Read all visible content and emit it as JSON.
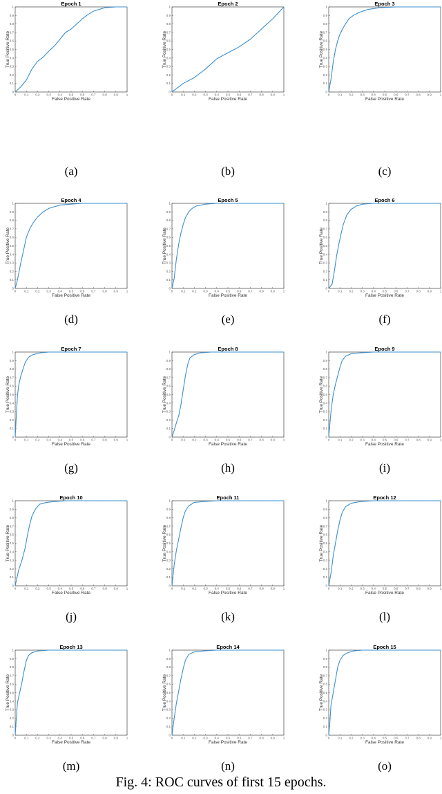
{
  "caption": "Fig. 4: ROC curves of first 15 epochs.",
  "line_color": "#3a8fd0",
  "chart_data": [
    {
      "type": "line",
      "title": "Epoch 1",
      "sublabel": "(a)",
      "xlabel": "False Positive Rate",
      "ylabel": "True Positive Rate",
      "xlim": [
        0,
        1
      ],
      "ylim": [
        0,
        1
      ],
      "x": [
        0,
        0.05,
        0.1,
        0.15,
        0.2,
        0.25,
        0.3,
        0.35,
        0.4,
        0.45,
        0.5,
        0.55,
        0.6,
        0.65,
        0.7,
        0.75,
        0.8,
        0.9,
        1
      ],
      "y": [
        0,
        0.06,
        0.14,
        0.27,
        0.36,
        0.41,
        0.48,
        0.54,
        0.62,
        0.7,
        0.74,
        0.8,
        0.86,
        0.91,
        0.95,
        0.97,
        0.99,
        1,
        1
      ]
    },
    {
      "type": "line",
      "title": "Epoch 2",
      "sublabel": "(b)",
      "xlabel": "False Positive Rate",
      "ylabel": "True Positive Rate",
      "xlim": [
        0,
        1
      ],
      "ylim": [
        0,
        1
      ],
      "x": [
        0,
        0.05,
        0.1,
        0.2,
        0.3,
        0.4,
        0.5,
        0.6,
        0.7,
        0.8,
        0.9,
        1
      ],
      "y": [
        0,
        0.05,
        0.1,
        0.17,
        0.27,
        0.39,
        0.46,
        0.53,
        0.62,
        0.74,
        0.86,
        1
      ]
    },
    {
      "type": "line",
      "title": "Epoch 3",
      "sublabel": "(c)",
      "xlabel": "False Positive Rate",
      "ylabel": "True Positive Rate",
      "xlim": [
        0,
        1
      ],
      "ylim": [
        0,
        1
      ],
      "x": [
        0,
        0.02,
        0.04,
        0.06,
        0.08,
        0.1,
        0.14,
        0.18,
        0.22,
        0.28,
        0.35,
        0.45,
        0.6,
        1
      ],
      "y": [
        0,
        0.15,
        0.35,
        0.5,
        0.6,
        0.68,
        0.78,
        0.86,
        0.9,
        0.94,
        0.97,
        0.99,
        1,
        1
      ]
    },
    {
      "type": "line",
      "title": "Epoch 4",
      "sublabel": "(d)",
      "xlabel": "False Positive Rate",
      "ylabel": "True Positive Rate",
      "xlim": [
        0,
        1
      ],
      "ylim": [
        0,
        1
      ],
      "x": [
        0,
        0.02,
        0.05,
        0.08,
        0.1,
        0.13,
        0.16,
        0.2,
        0.25,
        0.3,
        0.4,
        0.5,
        0.6,
        1
      ],
      "y": [
        0,
        0.1,
        0.3,
        0.48,
        0.6,
        0.7,
        0.77,
        0.84,
        0.9,
        0.94,
        0.98,
        0.99,
        1,
        1
      ]
    },
    {
      "type": "line",
      "title": "Epoch 5",
      "sublabel": "(e)",
      "xlabel": "False Positive Rate",
      "ylabel": "True Positive Rate",
      "xlim": [
        0,
        1
      ],
      "ylim": [
        0,
        1
      ],
      "x": [
        0,
        0.02,
        0.04,
        0.06,
        0.08,
        0.1,
        0.12,
        0.15,
        0.18,
        0.22,
        0.3,
        0.4,
        0.5,
        1
      ],
      "y": [
        0,
        0.12,
        0.35,
        0.52,
        0.65,
        0.75,
        0.83,
        0.9,
        0.94,
        0.97,
        0.99,
        1,
        1,
        1
      ]
    },
    {
      "type": "line",
      "title": "Epoch 6",
      "sublabel": "(f)",
      "xlabel": "False Positive Rate",
      "ylabel": "True Positive Rate",
      "xlim": [
        0,
        1
      ],
      "ylim": [
        0,
        1
      ],
      "x": [
        0,
        0.03,
        0.05,
        0.07,
        0.09,
        0.11,
        0.13,
        0.16,
        0.2,
        0.25,
        0.3,
        0.4,
        1
      ],
      "y": [
        0,
        0.05,
        0.2,
        0.38,
        0.52,
        0.64,
        0.75,
        0.86,
        0.93,
        0.97,
        0.99,
        1,
        1
      ]
    },
    {
      "type": "line",
      "title": "Epoch 7",
      "sublabel": "(g)",
      "xlabel": "False Positive Rate",
      "ylabel": "True Positive Rate",
      "xlim": [
        0,
        1
      ],
      "ylim": [
        0,
        1
      ],
      "x": [
        0,
        0.01,
        0.02,
        0.03,
        0.05,
        0.07,
        0.09,
        0.12,
        0.16,
        0.22,
        0.3,
        0.4,
        1
      ],
      "y": [
        0,
        0.25,
        0.48,
        0.6,
        0.72,
        0.8,
        0.88,
        0.94,
        0.97,
        0.99,
        1,
        1,
        1
      ]
    },
    {
      "type": "line",
      "title": "Epoch 8",
      "sublabel": "(h)",
      "xlabel": "False Positive Rate",
      "ylabel": "True Positive Rate",
      "xlim": [
        0,
        1
      ],
      "ylim": [
        0,
        1
      ],
      "x": [
        0,
        0.02,
        0.04,
        0.06,
        0.08,
        0.1,
        0.12,
        0.14,
        0.16,
        0.2,
        0.25,
        0.35,
        0.5,
        1
      ],
      "y": [
        0,
        0.08,
        0.17,
        0.25,
        0.38,
        0.55,
        0.72,
        0.85,
        0.93,
        0.97,
        0.99,
        1,
        1,
        1
      ]
    },
    {
      "type": "line",
      "title": "Epoch 9",
      "sublabel": "(i)",
      "xlabel": "False Positive Rate",
      "ylabel": "True Positive Rate",
      "xlim": [
        0,
        1
      ],
      "ylim": [
        0,
        1
      ],
      "x": [
        0,
        0.02,
        0.04,
        0.06,
        0.08,
        0.1,
        0.12,
        0.15,
        0.2,
        0.28,
        0.4,
        1
      ],
      "y": [
        0,
        0.3,
        0.5,
        0.62,
        0.72,
        0.82,
        0.9,
        0.95,
        0.98,
        0.99,
        1,
        1
      ]
    },
    {
      "type": "line",
      "title": "Epoch 10",
      "sublabel": "(j)",
      "xlabel": "False Positive Rate",
      "ylabel": "True Positive Rate",
      "xlim": [
        0,
        1
      ],
      "ylim": [
        0,
        1
      ],
      "x": [
        0,
        0.03,
        0.06,
        0.09,
        0.11,
        0.13,
        0.15,
        0.18,
        0.22,
        0.28,
        0.35,
        0.45,
        1
      ],
      "y": [
        0,
        0.18,
        0.3,
        0.45,
        0.6,
        0.72,
        0.82,
        0.9,
        0.96,
        0.98,
        0.99,
        1,
        1
      ]
    },
    {
      "type": "line",
      "title": "Epoch 11",
      "sublabel": "(k)",
      "xlabel": "False Positive Rate",
      "ylabel": "True Positive Rate",
      "xlim": [
        0,
        1
      ],
      "ylim": [
        0,
        1
      ],
      "x": [
        0,
        0.02,
        0.04,
        0.06,
        0.08,
        0.1,
        0.12,
        0.15,
        0.2,
        0.28,
        0.4,
        1
      ],
      "y": [
        0,
        0.25,
        0.42,
        0.55,
        0.68,
        0.8,
        0.88,
        0.94,
        0.98,
        0.99,
        1,
        1
      ]
    },
    {
      "type": "line",
      "title": "Epoch 12",
      "sublabel": "(l)",
      "xlabel": "False Positive Rate",
      "ylabel": "True Positive Rate",
      "xlim": [
        0,
        1
      ],
      "ylim": [
        0,
        1
      ],
      "x": [
        0,
        0.02,
        0.04,
        0.06,
        0.08,
        0.1,
        0.12,
        0.15,
        0.2,
        0.28,
        0.4,
        1
      ],
      "y": [
        0,
        0.15,
        0.35,
        0.5,
        0.65,
        0.77,
        0.86,
        0.93,
        0.97,
        0.99,
        1,
        1
      ]
    },
    {
      "type": "line",
      "title": "Epoch 13",
      "sublabel": "(m)",
      "xlabel": "False Positive Rate",
      "ylabel": "True Positive Rate",
      "xlim": [
        0,
        1
      ],
      "ylim": [
        0,
        1
      ],
      "x": [
        0,
        0.01,
        0.02,
        0.04,
        0.06,
        0.08,
        0.1,
        0.12,
        0.15,
        0.2,
        0.3,
        1
      ],
      "y": [
        0,
        0.2,
        0.38,
        0.5,
        0.62,
        0.76,
        0.88,
        0.94,
        0.97,
        0.99,
        1,
        1
      ]
    },
    {
      "type": "line",
      "title": "Epoch 14",
      "sublabel": "(n)",
      "xlabel": "False Positive Rate",
      "ylabel": "True Positive Rate",
      "xlim": [
        0,
        1
      ],
      "ylim": [
        0,
        1
      ],
      "x": [
        0,
        0.02,
        0.04,
        0.06,
        0.08,
        0.1,
        0.12,
        0.15,
        0.2,
        0.28,
        0.4,
        1
      ],
      "y": [
        0,
        0.2,
        0.38,
        0.52,
        0.66,
        0.78,
        0.88,
        0.95,
        0.98,
        0.99,
        1,
        1
      ]
    },
    {
      "type": "line",
      "title": "Epoch 15",
      "sublabel": "(o)",
      "xlabel": "False Positive Rate",
      "ylabel": "True Positive Rate",
      "xlim": [
        0,
        1
      ],
      "ylim": [
        0,
        1
      ],
      "x": [
        0,
        0.01,
        0.02,
        0.04,
        0.06,
        0.08,
        0.1,
        0.13,
        0.17,
        0.22,
        0.3,
        1
      ],
      "y": [
        0,
        0.15,
        0.35,
        0.5,
        0.65,
        0.8,
        0.88,
        0.94,
        0.97,
        0.99,
        1,
        1
      ]
    }
  ]
}
